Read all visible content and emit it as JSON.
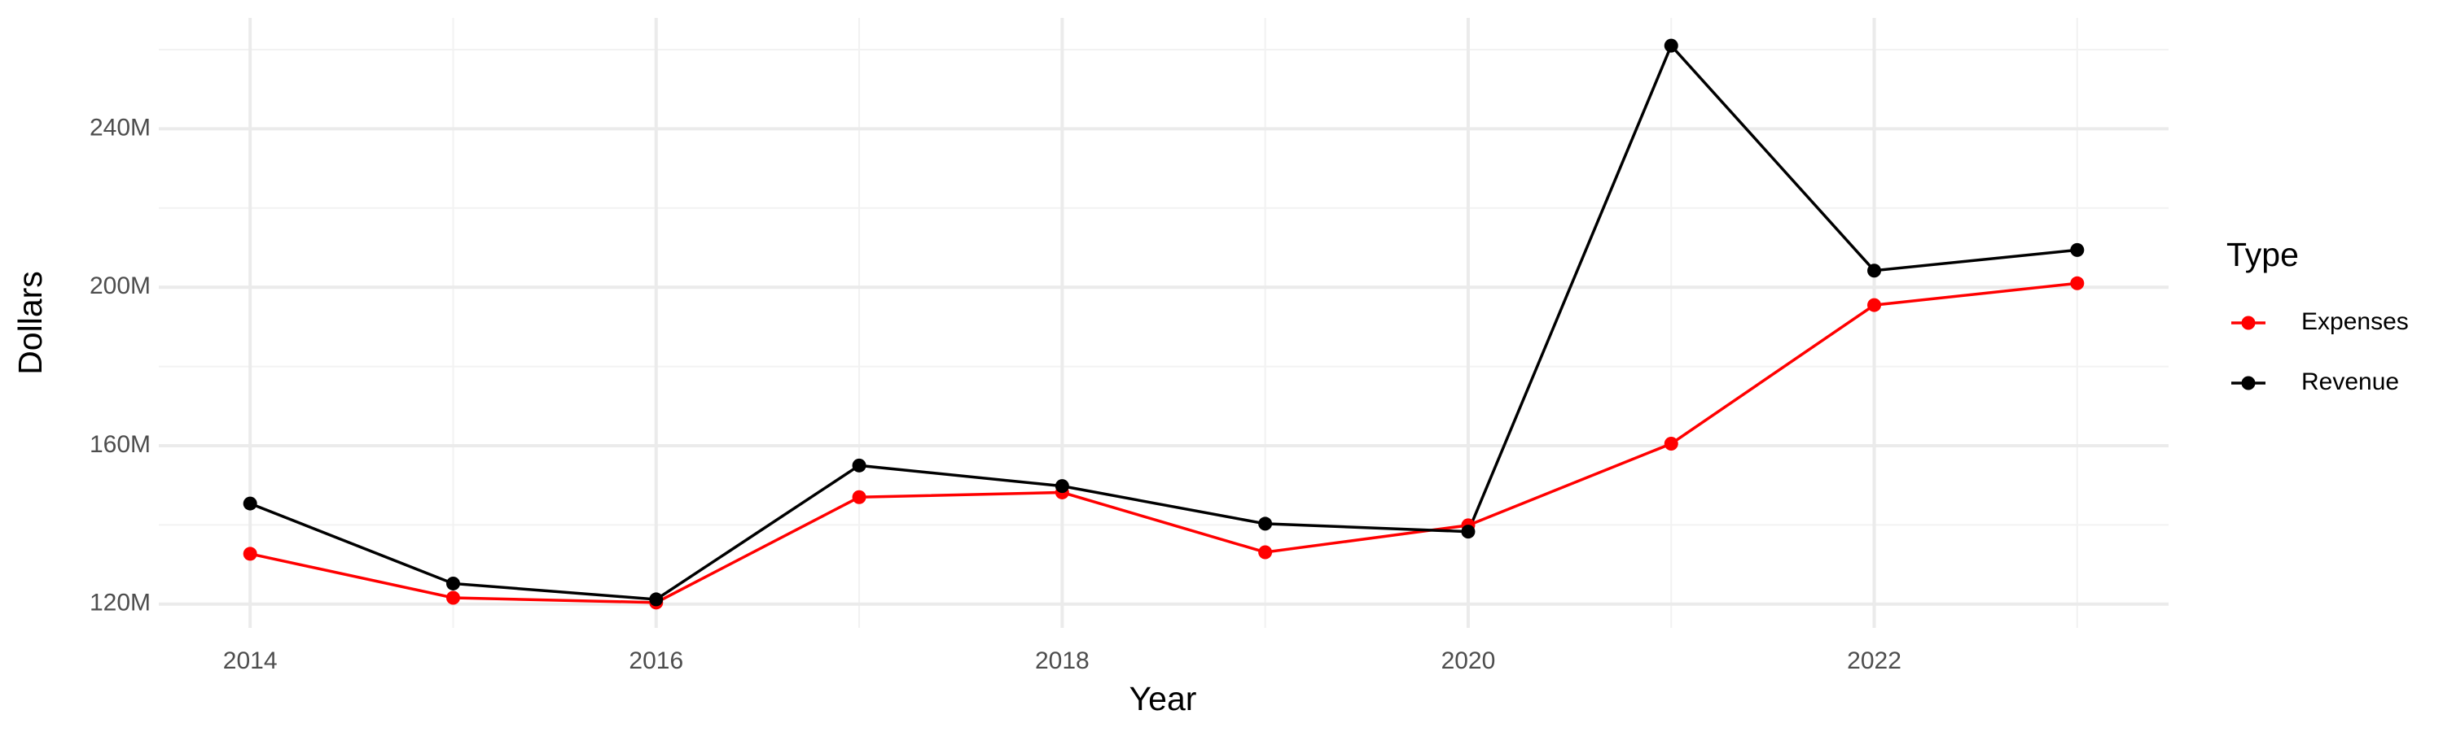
{
  "chart_data": {
    "type": "line",
    "x_label": "Year",
    "y_label": "Dollars",
    "legend_title": "Type",
    "x": [
      2014,
      2015,
      2016,
      2017,
      2018,
      2019,
      2020,
      2021,
      2022,
      2023
    ],
    "series": [
      {
        "name": "Expenses",
        "color": "#ff0000",
        "values": [
          132700000,
          121600000,
          120400000,
          147000000,
          148200000,
          133100000,
          139900000,
          160500000,
          195500000,
          201000000
        ]
      },
      {
        "name": "Revenue",
        "color": "#000000",
        "values": [
          145400000,
          125200000,
          121200000,
          155000000,
          149800000,
          140300000,
          138300000,
          261000000,
          204200000,
          209400000
        ]
      }
    ],
    "xlim": [
      2013.55,
      2023.45
    ],
    "xticks": [
      2014,
      2016,
      2018,
      2020,
      2022
    ],
    "x_minor_ticks": [
      2015,
      2017,
      2019,
      2021,
      2023
    ],
    "ylim": [
      114000000,
      268000000
    ],
    "yticks": [
      {
        "value": 120000000,
        "label": "120M"
      },
      {
        "value": 160000000,
        "label": "160M"
      },
      {
        "value": 200000000,
        "label": "200M"
      },
      {
        "value": 240000000,
        "label": "240M"
      }
    ],
    "y_minor_ticks": [
      140000000,
      180000000,
      220000000,
      260000000
    ],
    "grid": true,
    "legend": "right"
  }
}
